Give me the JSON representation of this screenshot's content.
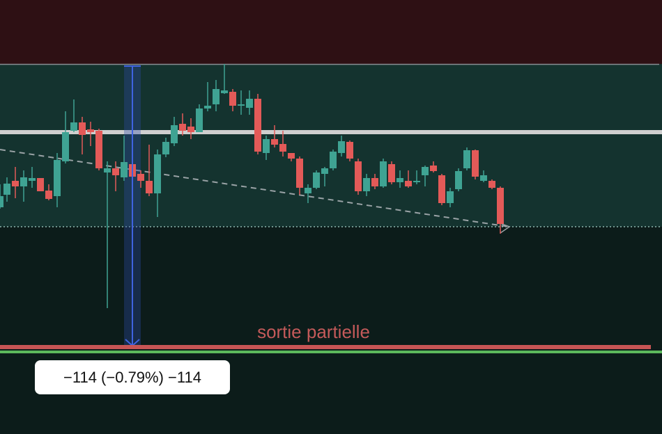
{
  "annotation": "sortie partielle",
  "measure_label": "−114 (−0.79%) −114"
}
